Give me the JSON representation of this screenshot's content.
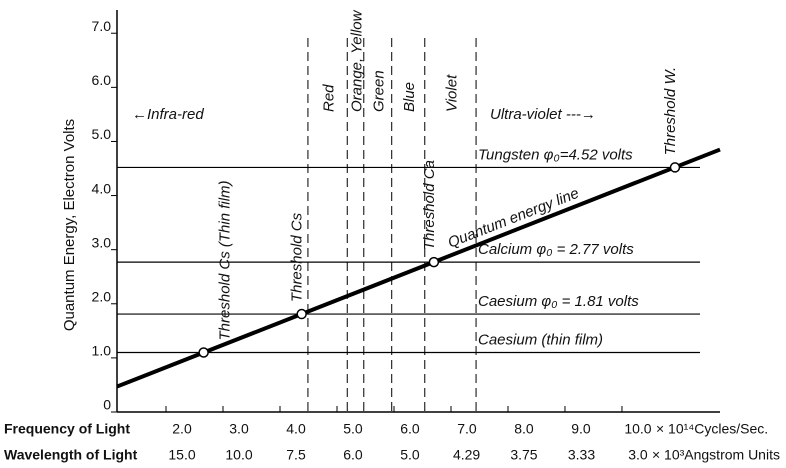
{
  "chart_data": {
    "type": "line",
    "ylabel": "Quantum Energy, Electron Volts",
    "xlabel": "Frequency of Light",
    "x2label": "Wavelength of Light",
    "xunit": "× 10¹⁴Cycles/Sec.",
    "x2unit": "× 10³Angstrom Units",
    "xlim": [
      1.14,
      11.72
    ],
    "ylim": [
      0,
      7.3
    ],
    "yticks": [
      0,
      {
        "value": 1,
        "label": "1.0"
      },
      {
        "value": 2,
        "label": "2.0"
      },
      {
        "value": 3,
        "label": "3.0"
      },
      {
        "value": 4,
        "label": "4.0"
      },
      {
        "value": 5,
        "label": "5.0"
      },
      {
        "value": 6,
        "label": "6.0"
      },
      {
        "value": 7,
        "label": "7.0"
      }
    ],
    "xticks": [
      {
        "value": 2,
        "label": "2.0"
      },
      {
        "value": 3,
        "label": "3.0"
      },
      {
        "value": 4,
        "label": "4.0"
      },
      {
        "value": 5,
        "label": "5.0"
      },
      {
        "value": 6,
        "label": "6.0"
      },
      {
        "value": 7,
        "label": "7.0"
      },
      {
        "value": 8,
        "label": "8.0"
      },
      {
        "value": 9,
        "label": "9.0"
      },
      {
        "value": 10,
        "label": "10.0"
      }
    ],
    "wavelength_ticks": [
      {
        "value": 15,
        "label": "15.0"
      },
      {
        "value": 10,
        "label": "10.0"
      },
      7.5,
      {
        "value": 6,
        "label": "6.0"
      },
      {
        "value": 5,
        "label": "5.0"
      },
      4.29,
      3.75,
      3.33,
      {
        "value": 3,
        "label": "3.0"
      }
    ],
    "series": [
      {
        "name": "Quantum energy line",
        "color": "#000000",
        "x": [
          1.14,
          11.72
        ],
        "values": [
          0.47,
          4.85
        ]
      }
    ],
    "thresholds": [
      {
        "label": "Threshold Cs (Thin film)",
        "x": 2.66,
        "value": 1.1
      },
      {
        "label": "Threshold Cs",
        "x": 4.38,
        "value": 1.81
      },
      {
        "label": "Threshold Ca",
        "x": 6.7,
        "value": 2.77
      },
      {
        "label": "Threshold W.",
        "x": 10.93,
        "value": 4.52
      }
    ],
    "levels": [
      {
        "label": "Tungsten φ₀=4.52 volts",
        "value": 4.52
      },
      {
        "label": "Calcium φ₀ = 2.77 volts",
        "value": 2.77
      },
      {
        "label": "Caesium φ₀ = 1.81 volts",
        "value": 1.81
      },
      {
        "label": "Caesium (thin film)",
        "value": 1.1
      }
    ],
    "boundaries": [
      4.49,
      5.18,
      5.47,
      5.96,
      6.54,
      7.44
    ],
    "band_labels": [
      "Red",
      "Orange, Yellow",
      "Green",
      "Blue",
      "Violet"
    ],
    "regions": [
      "←Infra-red",
      "Ultra-violet ---→"
    ]
  }
}
